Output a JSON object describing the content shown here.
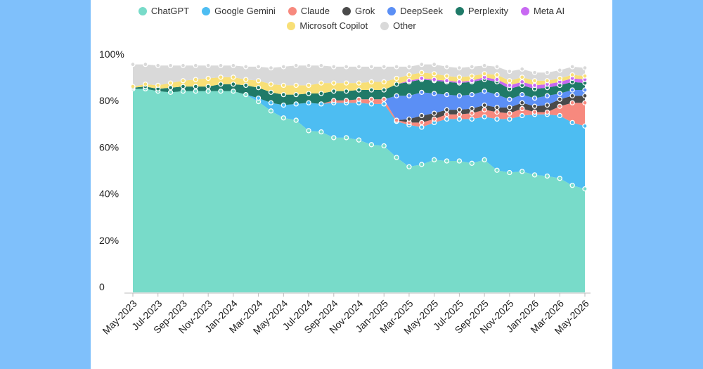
{
  "chart_data": {
    "type": "area",
    "stacked": true,
    "percent": true,
    "title": "",
    "xlabel": "",
    "ylabel": "",
    "ylim": [
      0,
      100
    ],
    "y_ticks": [
      "0",
      "20%",
      "40%",
      "60%",
      "80%",
      "100%"
    ],
    "x_tick_labels": [
      "May-2023",
      "Jul-2023",
      "Sep-2023",
      "Nov-2023",
      "Jan-2024",
      "Mar-2024",
      "May-2024",
      "Jul-2024",
      "Sep-2024",
      "Nov-2024",
      "Jan-2025",
      "Mar-2025",
      "May-2025",
      "Jul-2025",
      "Sep-2025",
      "Nov-2025",
      "Jan-2026",
      "Mar-2026",
      "May-2026"
    ],
    "x": [
      "May-2023",
      "Jun-2023",
      "Jul-2023",
      "Aug-2023",
      "Sep-2023",
      "Oct-2023",
      "Nov-2023",
      "Dec-2023",
      "Jan-2024",
      "Feb-2024",
      "Mar-2024",
      "Apr-2024",
      "May-2024",
      "Jun-2024",
      "Jul-2024",
      "Aug-2024",
      "Sep-2024",
      "Oct-2024",
      "Nov-2024",
      "Dec-2024",
      "Jan-2025",
      "Feb-2025",
      "Mar-2025",
      "Apr-2025",
      "May-2025",
      "Jun-2025",
      "Jul-2025",
      "Aug-2025",
      "Sep-2025",
      "Oct-2025",
      "Nov-2025",
      "Dec-2025",
      "Jan-2026",
      "Feb-2026",
      "Mar-2026",
      "Apr-2026",
      "May-2026"
    ],
    "legend_position": "top-center",
    "series": [
      {
        "name": "ChatGPT",
        "color": "#78dbc9",
        "values": [
          87.5,
          87.5,
          86.5,
          86,
          86.5,
          86.5,
          86.5,
          86.5,
          86.5,
          85,
          82,
          78,
          75,
          74,
          69.5,
          69,
          66.5,
          66.5,
          65.5,
          63.5,
          63,
          58,
          54,
          55,
          57,
          56.5,
          56.5,
          55.5,
          57,
          52.5,
          51.5,
          52,
          50.5,
          50,
          49,
          46,
          44.5
        ]
      },
      {
        "name": "Google Gemini",
        "color": "#4dbdf2",
        "values": [
          0,
          0,
          0,
          0,
          0,
          0,
          0,
          0,
          0,
          0,
          1.5,
          3.5,
          5.5,
          7,
          12,
          12,
          15,
          15,
          16,
          17.5,
          18,
          15.5,
          18,
          16,
          16,
          18,
          18,
          19,
          18.5,
          22,
          23,
          24,
          26,
          26.5,
          27,
          27,
          27
        ]
      },
      {
        "name": "Claude",
        "color": "#f7897e",
        "values": [
          0,
          0,
          0,
          0,
          0,
          0,
          0,
          0,
          0,
          0,
          0,
          0,
          0,
          0,
          0,
          0,
          1,
          1,
          1.5,
          2,
          2,
          0.5,
          1,
          2,
          1.5,
          2,
          2,
          2.5,
          3,
          3,
          2.5,
          3,
          1,
          1,
          4,
          8.5,
          10
        ]
      },
      {
        "name": "Grok",
        "color": "#4a4a4a",
        "values": [
          0,
          0,
          0,
          0,
          0,
          0,
          0,
          0,
          0,
          0,
          0,
          0,
          0,
          0,
          0,
          0,
          0,
          0,
          0,
          0,
          0,
          0,
          1.5,
          3,
          2.5,
          2,
          2,
          2,
          2,
          2,
          2.5,
          2.5,
          2.5,
          3,
          3,
          3,
          3
        ]
      },
      {
        "name": "DeepSeek",
        "color": "#5b8ff5",
        "values": [
          0,
          0,
          0,
          0,
          0,
          0,
          0,
          0,
          0,
          0,
          0,
          0,
          0,
          0,
          0,
          0,
          0,
          0,
          0,
          0,
          0,
          10.5,
          10,
          10,
          8.5,
          6.5,
          6,
          6,
          6,
          5.5,
          3.5,
          3.5,
          3.5,
          4,
          2.5,
          2.5,
          2.5
        ]
      },
      {
        "name": "Perplexity",
        "color": "#1f7a68",
        "values": [
          0.5,
          1,
          1,
          2,
          2,
          2,
          2,
          3,
          3,
          4,
          4.5,
          4.5,
          4.5,
          4,
          4,
          4.5,
          4,
          4,
          4,
          4,
          4,
          5,
          6,
          5.5,
          5.5,
          5.5,
          5.5,
          5.5,
          5,
          5.5,
          4.5,
          4,
          4,
          3.5,
          3.5,
          3.5,
          3
        ]
      },
      {
        "name": "Meta AI",
        "color": "#c869f2",
        "values": [
          0,
          0,
          0,
          0,
          0,
          0,
          0,
          0,
          0,
          0,
          0,
          0,
          0,
          0,
          0,
          0,
          0,
          0,
          0,
          0,
          0,
          0,
          0.5,
          0.5,
          0.5,
          0.5,
          0.5,
          0.5,
          1,
          1,
          1.5,
          1.5,
          1.5,
          1.5,
          1.5,
          1.5,
          1.5
        ]
      },
      {
        "name": "Microsoft Copilot",
        "color": "#f8df76",
        "values": [
          0.5,
          1,
          1.5,
          2,
          2.5,
          3,
          3.5,
          3,
          3,
          2.5,
          3,
          3.5,
          4,
          4,
          3.5,
          4.5,
          3.5,
          3.5,
          3,
          3.5,
          3.5,
          2.5,
          2.5,
          2.5,
          2.5,
          2,
          2,
          2,
          1.5,
          2,
          2,
          2,
          2,
          1.5,
          1.5,
          1.5,
          1.5
        ]
      },
      {
        "name": "Other",
        "color": "#d9d9d9",
        "values": [
          9.5,
          8.5,
          8.5,
          7.5,
          6.5,
          6,
          5.5,
          5,
          5,
          5.5,
          6,
          7,
          8,
          8.5,
          8.5,
          7.5,
          7,
          7,
          7,
          6.5,
          6.5,
          5,
          3.5,
          3.5,
          4,
          4,
          4,
          4,
          3.5,
          3.5,
          4,
          3.5,
          3.5,
          3.5,
          3.5,
          3.5,
          3.5
        ]
      }
    ]
  }
}
